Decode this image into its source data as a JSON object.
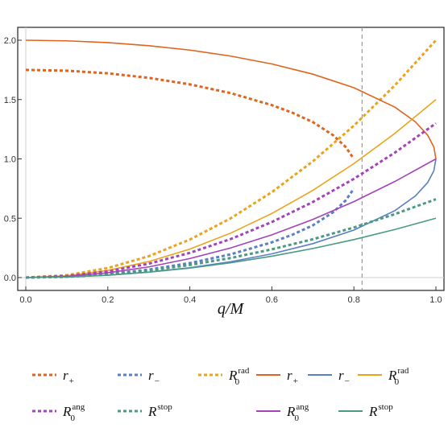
{
  "chart_data": {
    "type": "line",
    "xlabel": "q/M",
    "ylabel": "",
    "xlim": [
      0.0,
      1.0
    ],
    "ylim": [
      0.0,
      2.0
    ],
    "x_ticks": [
      "0.0",
      "0.2",
      "0.4",
      "0.6",
      "0.8",
      "1.0"
    ],
    "y_ticks": [
      "0.0",
      "0.5",
      "1.0",
      "1.5",
      "2.0"
    ],
    "vertical_line": {
      "x": 0.82,
      "style": "dashed",
      "color": "#999999"
    },
    "colors": {
      "orange_red": "#E0641E",
      "blue": "#5B7FC4",
      "orange": "#EBA31A",
      "purple": "#A443B8",
      "teal": "#4A9A83"
    },
    "series": [
      {
        "label": "r₊ (dashed)",
        "style": "dashed",
        "color": "#E0641E",
        "x": [
          0.0,
          0.1,
          0.2,
          0.3,
          0.4,
          0.5,
          0.6,
          0.65,
          0.7,
          0.75,
          0.78,
          0.8
        ],
        "y": [
          1.75,
          1.743,
          1.721,
          1.683,
          1.628,
          1.554,
          1.453,
          1.389,
          1.31,
          1.198,
          1.1,
          1.0
        ]
      },
      {
        "label": "r₋ (dashed)",
        "style": "dashed",
        "color": "#5B7FC4",
        "x": [
          0.0,
          0.1,
          0.2,
          0.3,
          0.4,
          0.5,
          0.6,
          0.65,
          0.7,
          0.75,
          0.78,
          0.8
        ],
        "y": [
          0.0,
          0.007,
          0.029,
          0.067,
          0.122,
          0.196,
          0.297,
          0.361,
          0.44,
          0.552,
          0.65,
          0.75
        ]
      },
      {
        "label": "R₀ rad (dashed)",
        "style": "dashed",
        "color": "#EBA31A",
        "x": [
          0.0,
          0.1,
          0.2,
          0.3,
          0.4,
          0.5,
          0.6,
          0.7,
          0.8,
          0.9,
          1.0
        ],
        "y": [
          0.0,
          0.02,
          0.08,
          0.18,
          0.32,
          0.5,
          0.72,
          0.98,
          1.28,
          1.62,
          2.0
        ]
      },
      {
        "label": "r₊",
        "style": "solid",
        "color": "#E0641E",
        "x": [
          0.0,
          0.1,
          0.2,
          0.3,
          0.4,
          0.5,
          0.6,
          0.7,
          0.8,
          0.9,
          0.95,
          0.98,
          0.995,
          1.0
        ],
        "y": [
          2.0,
          1.995,
          1.98,
          1.954,
          1.917,
          1.866,
          1.8,
          1.714,
          1.6,
          1.436,
          1.312,
          1.199,
          1.1,
          1.0
        ]
      },
      {
        "label": "r₋",
        "style": "solid",
        "color": "#5B7FC4",
        "x": [
          0.0,
          0.1,
          0.2,
          0.3,
          0.4,
          0.5,
          0.6,
          0.7,
          0.8,
          0.9,
          0.95,
          0.98,
          0.995,
          1.0
        ],
        "y": [
          0.0,
          0.005,
          0.02,
          0.046,
          0.083,
          0.134,
          0.2,
          0.286,
          0.4,
          0.564,
          0.688,
          0.801,
          0.9,
          1.0
        ]
      },
      {
        "label": "R₀ rad",
        "style": "solid",
        "color": "#EBA31A",
        "x": [
          0.0,
          0.1,
          0.2,
          0.3,
          0.4,
          0.5,
          0.6,
          0.7,
          0.8,
          0.9,
          1.0
        ],
        "y": [
          0.0,
          0.015,
          0.06,
          0.135,
          0.24,
          0.375,
          0.54,
          0.735,
          0.96,
          1.215,
          1.5
        ]
      },
      {
        "label": "R₀ ang (dashed)",
        "style": "dashed",
        "color": "#A443B8",
        "x": [
          0.0,
          0.1,
          0.2,
          0.3,
          0.4,
          0.5,
          0.6,
          0.7,
          0.8,
          0.9,
          1.0
        ],
        "y": [
          0.0,
          0.013,
          0.052,
          0.117,
          0.208,
          0.325,
          0.468,
          0.637,
          0.832,
          1.053,
          1.3
        ]
      },
      {
        "label": "R stop (dashed)",
        "style": "dashed",
        "color": "#4A9A83",
        "x": [
          0.0,
          0.1,
          0.2,
          0.3,
          0.4,
          0.5,
          0.6,
          0.7,
          0.8,
          0.9,
          1.0
        ],
        "y": [
          0.0,
          0.0066,
          0.026,
          0.059,
          0.106,
          0.165,
          0.238,
          0.323,
          0.422,
          0.535,
          0.66
        ]
      },
      {
        "label": "R₀ ang",
        "style": "solid",
        "color": "#A443B8",
        "x": [
          0.0,
          0.1,
          0.2,
          0.3,
          0.4,
          0.5,
          0.6,
          0.7,
          0.8,
          0.9,
          1.0
        ],
        "y": [
          0.0,
          0.01,
          0.04,
          0.09,
          0.16,
          0.25,
          0.36,
          0.49,
          0.64,
          0.81,
          1.0
        ]
      },
      {
        "label": "R stop",
        "style": "solid",
        "color": "#4A9A83",
        "x": [
          0.0,
          0.1,
          0.2,
          0.3,
          0.4,
          0.5,
          0.6,
          0.7,
          0.8,
          0.9,
          1.0
        ],
        "y": [
          0.0,
          0.005,
          0.02,
          0.045,
          0.08,
          0.125,
          0.18,
          0.245,
          0.32,
          0.405,
          0.5
        ]
      }
    ],
    "legend": [
      {
        "base": "r",
        "sub": "+",
        "sup": "",
        "style": "dashed",
        "color": "#E0641E"
      },
      {
        "base": "r",
        "sub": "−",
        "sup": "",
        "style": "dashed",
        "color": "#5B7FC4"
      },
      {
        "base": "R",
        "sub": "0",
        "sup": "rad",
        "style": "dashed",
        "color": "#EBA31A"
      },
      {
        "base": "r",
        "sub": "+",
        "sup": "",
        "style": "solid",
        "color": "#E0641E"
      },
      {
        "base": "r",
        "sub": "−",
        "sup": "",
        "style": "solid",
        "color": "#5B7FC4"
      },
      {
        "base": "R",
        "sub": "0",
        "sup": "rad",
        "style": "solid",
        "color": "#EBA31A"
      },
      {
        "base": "R",
        "sub": "0",
        "sup": "ang",
        "style": "dashed",
        "color": "#A443B8"
      },
      {
        "base": "R",
        "sub": "",
        "sup": "stop",
        "style": "dashed",
        "color": "#4A9A83"
      },
      {
        "base": "R",
        "sub": "0",
        "sup": "ang",
        "style": "solid",
        "color": "#A443B8"
      },
      {
        "base": "R",
        "sub": "",
        "sup": "stop",
        "style": "solid",
        "color": "#4A9A83"
      }
    ],
    "legend_placement": "bottom",
    "grid": false
  }
}
